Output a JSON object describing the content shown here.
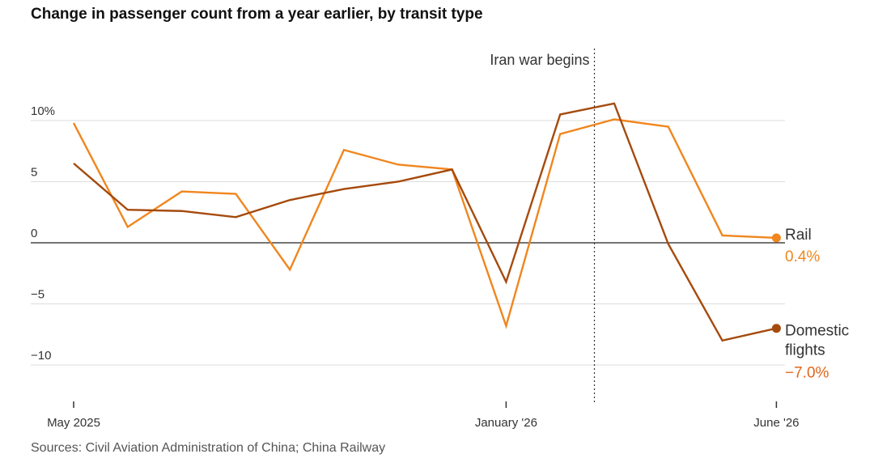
{
  "title": "Change in passenger count from a year earlier, by transit type",
  "source": "Sources: Civil Aviation Administration of China; China Railway",
  "chart_data": {
    "type": "line",
    "title": "Change in passenger count from a year earlier, by transit type",
    "xlabel": "",
    "ylabel": "",
    "x": [
      "2025-05",
      "2025-06",
      "2025-07",
      "2025-08",
      "2025-09",
      "2025-10",
      "2025-11",
      "2025-12",
      "2026-01",
      "2026-02",
      "2026-03",
      "2026-04",
      "2026-05",
      "2026-06"
    ],
    "x_tick_labels": [
      {
        "x": "2025-05",
        "label": "May 2025"
      },
      {
        "x": "2026-01",
        "label": "January '26"
      },
      {
        "x": "2026-06",
        "label": "June '26"
      }
    ],
    "y_ticks": [
      {
        "value": 10,
        "label": "10%"
      },
      {
        "value": 5,
        "label": "5"
      },
      {
        "value": 0,
        "label": "0"
      },
      {
        "value": -5,
        "label": "−5"
      },
      {
        "value": -10,
        "label": "−10"
      }
    ],
    "ylim": [
      -13,
      16
    ],
    "grid": true,
    "series": [
      {
        "key": "rail",
        "name": "Rail",
        "value_label": "0.4%",
        "color": "#f0861e",
        "values": [
          9.8,
          1.3,
          4.2,
          4.0,
          -2.2,
          7.6,
          6.4,
          6.0,
          -6.8,
          8.9,
          10.1,
          9.5,
          0.6,
          0.4
        ]
      },
      {
        "key": "flights",
        "name": "Domestic flights",
        "value_label": "−7.0%",
        "color": "#a54a0d",
        "values": [
          6.5,
          2.7,
          2.6,
          2.1,
          3.5,
          4.4,
          5.0,
          6.0,
          -3.2,
          10.5,
          11.4,
          -0.1,
          -8.0,
          -7.0
        ]
      }
    ],
    "annotations": [
      {
        "x": "2026-02-20",
        "label": "Iran war begins"
      }
    ]
  }
}
